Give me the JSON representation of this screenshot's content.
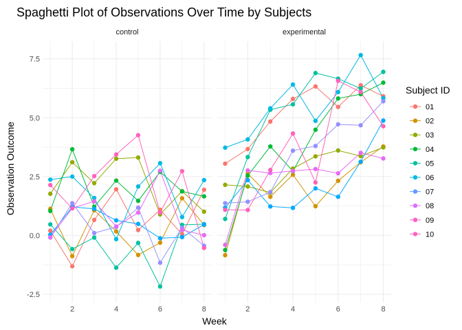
{
  "chart_data": {
    "type": "line",
    "title": "Spaghetti Plot of Observations Over Time by Subjects",
    "xlabel": "Week",
    "ylabel": "Observation Outcome",
    "x": [
      1,
      2,
      3,
      4,
      5,
      6,
      7,
      8
    ],
    "xticks": [
      2,
      4,
      6,
      8
    ],
    "yticks": [
      -2.5,
      0.0,
      2.5,
      5.0,
      7.5
    ],
    "ytick_labels": [
      "-2.5",
      "0.0",
      "2.5",
      "5.0",
      "7.5"
    ],
    "xlim": [
      0.65,
      8.35
    ],
    "ylim": [
      -2.85,
      8.25
    ],
    "grid": true,
    "legend": {
      "title": "Subject ID",
      "position": "right",
      "entries": [
        {
          "label": "01",
          "color": "#F8766D"
        },
        {
          "label": "02",
          "color": "#D39200"
        },
        {
          "label": "03",
          "color": "#93AA00"
        },
        {
          "label": "04",
          "color": "#00BA38"
        },
        {
          "label": "05",
          "color": "#00C19F"
        },
        {
          "label": "06",
          "color": "#00B9E3"
        },
        {
          "label": "07",
          "color": "#619CFF"
        },
        {
          "label": "08",
          "color": "#DB72FB"
        },
        {
          "label": "09",
          "color": "#FF61C3"
        },
        {
          "label": "10",
          "color": "#FF61C3"
        }
      ]
    },
    "panels": [
      {
        "name": "control",
        "series": [
          {
            "name": "01",
            "color": "#F8766D",
            "values": [
              0.2,
              -1.31,
              0.66,
              1.96,
              0.23,
              1.09,
              0.05,
              1.94
            ]
          },
          {
            "name": "02",
            "color": "#D39200",
            "values": [
              1.13,
              -0.88,
              1.07,
              0.17,
              -0.83,
              -0.31,
              1.58,
              0.44
            ]
          },
          {
            "name": "03",
            "color": "#93AA00",
            "values": [
              1.77,
              3.11,
              2.22,
              3.26,
              3.31,
              0.89,
              1.88,
              1.01
            ]
          },
          {
            "name": "04",
            "color": "#00BA38",
            "values": [
              1.04,
              3.66,
              1.22,
              2.33,
              1.47,
              2.7,
              1.87,
              1.66
            ]
          },
          {
            "name": "05",
            "color": "#00C19F",
            "values": [
              0.47,
              -0.58,
              -0.09,
              -1.37,
              -0.32,
              -2.17,
              0.45,
              0.48
            ]
          },
          {
            "name": "06",
            "color": "#00B9E3",
            "values": [
              2.37,
              2.5,
              1.59,
              -0.16,
              2.08,
              3.07,
              0.78,
              2.35
            ]
          },
          {
            "name": "07",
            "color": "#00A9FF",
            "values": [
              0.03,
              1.21,
              1.13,
              0.64,
              0.49,
              -0.12,
              -0.07,
              0.46
            ]
          },
          {
            "name": "08",
            "color": "#9590FF",
            "values": [
              -0.09,
              1.37,
              0.1,
              0.36,
              1.18,
              -1.16,
              0.33,
              -0.44
            ]
          },
          {
            "name": "09",
            "color": "#E76BF3",
            "values": [
              -0.08,
              1.16,
              1.45,
              0.38,
              0.97,
              2.75,
              0.23,
              0.01
            ]
          },
          {
            "name": "10",
            "color": "#FF62BC",
            "values": [
              2.14,
              1.15,
              2.52,
              3.44,
              4.26,
              0.97,
              2.73,
              -0.53
            ]
          }
        ]
      },
      {
        "name": "experimental",
        "series": [
          {
            "name": "01",
            "color": "#F8766D",
            "values": [
              3.05,
              3.67,
              4.84,
              5.8,
              6.33,
              5.46,
              6.38,
              5.91
            ]
          },
          {
            "name": "02",
            "color": "#D39200",
            "values": [
              -0.84,
              2.63,
              1.64,
              2.58,
              1.24,
              2.32,
              3.11,
              3.78
            ]
          },
          {
            "name": "03",
            "color": "#93AA00",
            "values": [
              2.15,
              2.08,
              1.82,
              2.84,
              3.36,
              3.61,
              3.37,
              3.74
            ]
          },
          {
            "name": "04",
            "color": "#00BA38",
            "values": [
              -0.62,
              2.54,
              3.78,
              2.73,
              4.49,
              5.82,
              6.0,
              6.49
            ]
          },
          {
            "name": "05",
            "color": "#00C19F",
            "values": [
              0.7,
              3.33,
              5.34,
              5.57,
              6.9,
              6.66,
              6.24,
              6.95
            ]
          },
          {
            "name": "06",
            "color": "#00B9E3",
            "values": [
              3.73,
              4.08,
              5.4,
              6.41,
              4.87,
              6.09,
              7.66,
              5.83
            ]
          },
          {
            "name": "07",
            "color": "#00A9FF",
            "values": [
              1.18,
              2.35,
              1.23,
              1.17,
              2.0,
              1.64,
              3.13,
              4.88
            ]
          },
          {
            "name": "08",
            "color": "#9590FF",
            "values": [
              1.37,
              1.43,
              1.84,
              3.6,
              3.8,
              4.72,
              4.68,
              5.7
            ]
          },
          {
            "name": "09",
            "color": "#E76BF3",
            "values": [
              -0.4,
              2.76,
              2.65,
              2.74,
              2.82,
              2.64,
              3.51,
              3.27
            ]
          },
          {
            "name": "10",
            "color": "#FF62BC",
            "values": [
              1.09,
              1.08,
              2.78,
              4.33,
              2.25,
              6.57,
              6.09,
              4.64
            ]
          }
        ]
      }
    ]
  }
}
